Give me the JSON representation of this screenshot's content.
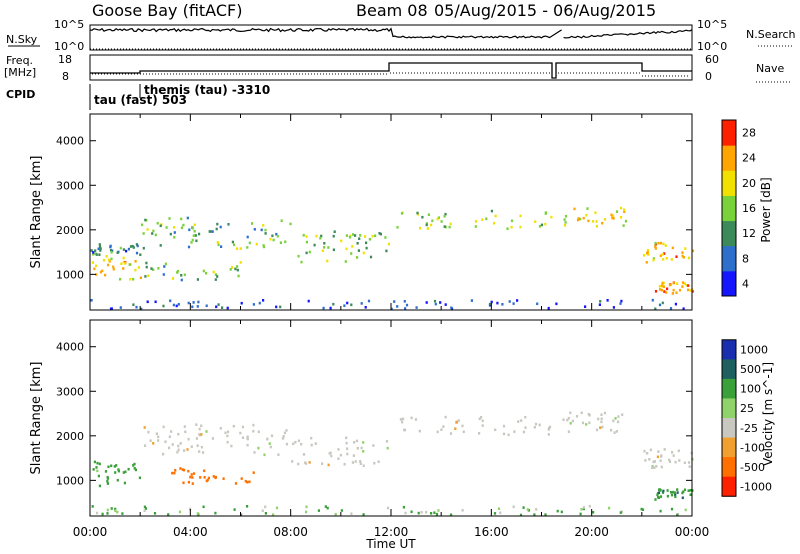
{
  "header": {
    "station": "Goose Bay (fitACF)",
    "beam": "Beam 08",
    "dates": "05/Aug/2015 - 06/Aug/2015"
  },
  "strip_labels": {
    "nsky": "N.Sky",
    "nsky_ticks": [
      "10^5",
      "10^0"
    ],
    "nsearch": "N.Search",
    "nsearch_ticks": [
      "10^5",
      "10^0"
    ],
    "freq": "Freq.",
    "freq_unit": "[MHz]",
    "freq_ticks": [
      "18",
      "8"
    ],
    "nave": "Nave",
    "nave_ticks": [
      "60",
      "0"
    ],
    "cpid": "CPID",
    "cpid_segments": [
      "tau (fast) 503",
      "themis (tau) -3310"
    ]
  },
  "chart_data": [
    {
      "type": "heatmap",
      "name": "power",
      "ylabel": "Slant Range [km]",
      "yticks": [
        1000,
        2000,
        3000,
        4000
      ],
      "ylim": [
        200,
        4600
      ],
      "colorbar_label": "Power [dB]",
      "colorbar_ticks": [
        "4",
        "8",
        "12",
        "16",
        "20",
        "24",
        "28"
      ],
      "colorbar_colors": [
        "#1515ff",
        "#2e6fcc",
        "#3c8a5a",
        "#7ad23a",
        "#f2e100",
        "#ffa500",
        "#ff2000"
      ],
      "xticks": [
        "00:00",
        "04:00",
        "08:00",
        "12:00",
        "16:00",
        "20:00",
        "00:00"
      ],
      "bands": [
        {
          "t0": 0.0,
          "t1": 2.0,
          "r0": 900,
          "r1": 1450,
          "power": 22
        },
        {
          "t0": 0.0,
          "t1": 2.0,
          "r0": 1450,
          "r1": 1750,
          "power": 10
        },
        {
          "t0": 2.0,
          "t1": 6.0,
          "r0": 900,
          "r1": 1300,
          "power": 14
        },
        {
          "t0": 2.0,
          "t1": 8.0,
          "r0": 1600,
          "r1": 2300,
          "power": 14
        },
        {
          "t0": 8.0,
          "t1": 12.0,
          "r0": 1300,
          "r1": 2000,
          "power": 16
        },
        {
          "t0": 12.2,
          "t1": 18.4,
          "r0": 2050,
          "r1": 2450,
          "power": 17
        },
        {
          "t0": 18.8,
          "t1": 21.4,
          "r0": 2100,
          "r1": 2550,
          "power": 20
        },
        {
          "t0": 22.0,
          "t1": 24.0,
          "r0": 1300,
          "r1": 1750,
          "power": 22
        },
        {
          "t0": 22.5,
          "t1": 24.0,
          "r0": 600,
          "r1": 850,
          "power": 24
        },
        {
          "t0": 0.0,
          "t1": 24.0,
          "r0": 250,
          "r1": 450,
          "power": 6
        }
      ]
    },
    {
      "type": "heatmap",
      "name": "velocity",
      "ylabel": "Slant Range [km]",
      "yticks": [
        1000,
        2000,
        3000,
        4000
      ],
      "ylim": [
        200,
        4600
      ],
      "xlabel": "Time UT",
      "colorbar_label": "Velocity [m s^-1]",
      "colorbar_ticks": [
        "1000",
        "500",
        "100",
        "25",
        "-25",
        "-100",
        "-500",
        "-1000"
      ],
      "colorbar_colors": [
        "#1a2fb0",
        "#1e6060",
        "#3aa03a",
        "#8fd36a",
        "#c8c8c0",
        "#f0a030",
        "#ff7000",
        "#ff2000"
      ],
      "xticks": [
        "00:00",
        "04:00",
        "08:00",
        "12:00",
        "16:00",
        "20:00",
        "00:00"
      ],
      "bands": [
        {
          "t0": 0.0,
          "t1": 2.0,
          "r0": 900,
          "r1": 1450,
          "vel": 60
        },
        {
          "t0": 3.0,
          "t1": 6.5,
          "r0": 950,
          "r1": 1350,
          "vel": -300
        },
        {
          "t0": 2.0,
          "t1": 8.0,
          "r0": 1600,
          "r1": 2300,
          "vel": 0
        },
        {
          "t0": 8.0,
          "t1": 12.0,
          "r0": 1350,
          "r1": 2000,
          "vel": 0
        },
        {
          "t0": 12.2,
          "t1": 18.4,
          "r0": 2050,
          "r1": 2450,
          "vel": 0
        },
        {
          "t0": 18.8,
          "t1": 21.4,
          "r0": 2100,
          "r1": 2550,
          "vel": 0
        },
        {
          "t0": 22.0,
          "t1": 24.0,
          "r0": 1300,
          "r1": 1750,
          "vel": 0
        },
        {
          "t0": 22.5,
          "t1": 24.0,
          "r0": 600,
          "r1": 850,
          "vel": 80
        },
        {
          "t0": 0.0,
          "t1": 24.0,
          "r0": 250,
          "r1": 450,
          "vel": 30
        }
      ]
    }
  ]
}
